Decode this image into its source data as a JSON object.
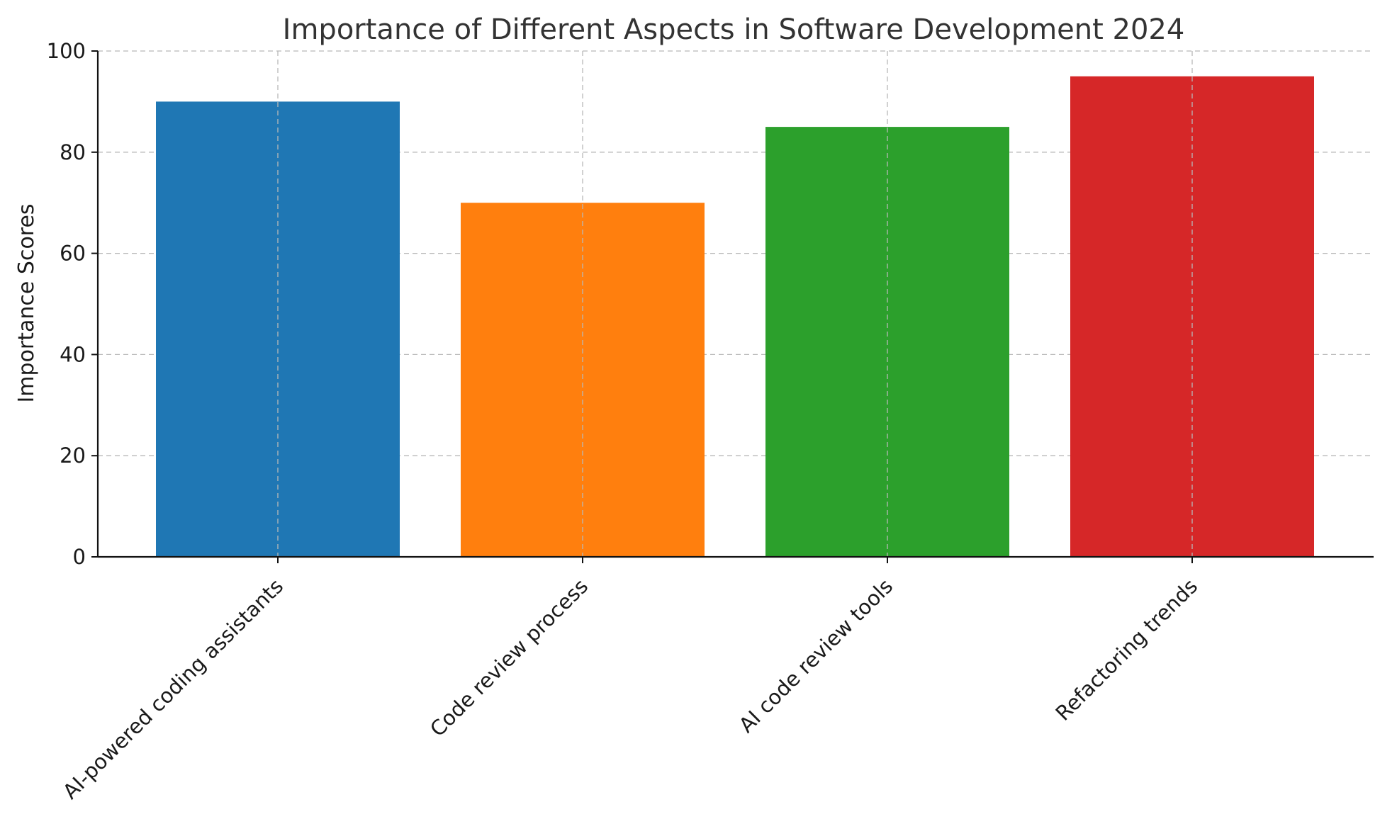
{
  "chart_data": {
    "type": "bar",
    "title": "Importance of Different Aspects in Software Development 2024",
    "xlabel": "",
    "ylabel": "Importance Scores",
    "categories": [
      "AI-powered coding assistants",
      "Code review process",
      "AI code review tools",
      "Refactoring trends"
    ],
    "values": [
      90,
      70,
      85,
      95
    ],
    "colors": [
      "#1f77b4",
      "#ff7f0e",
      "#2ca02c",
      "#d62728"
    ],
    "ylim": [
      0,
      100
    ],
    "yticks": [
      0,
      20,
      40,
      60,
      80,
      100
    ],
    "grid": true,
    "legend": "none"
  }
}
